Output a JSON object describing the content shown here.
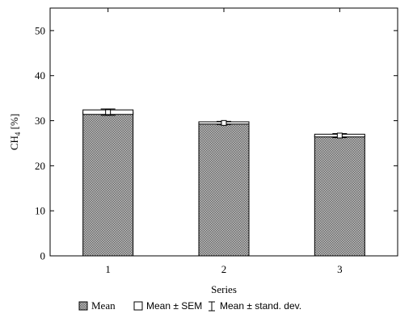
{
  "chart_data": {
    "type": "bar",
    "categories": [
      "1",
      "2",
      "3"
    ],
    "series": [
      {
        "values": [
          31.9,
          29.5,
          26.7
        ],
        "sem": [
          0.5,
          0.25,
          0.3
        ],
        "sd": [
          0.7,
          0.35,
          0.45
        ]
      }
    ],
    "xlabel": "Series",
    "ylabel_main": "CH",
    "ylabel_sub": "4",
    "ylabel_unit": " [%]",
    "ylim": [
      0,
      55
    ],
    "yticks": [
      0,
      10,
      20,
      30,
      40,
      50
    ],
    "ytick_labels": [
      "0",
      "10",
      "20",
      "30",
      "40",
      "50"
    ],
    "grid": false,
    "legend_position": "bottom",
    "legend": {
      "mean": "Mean",
      "sem": "Mean ± SEM",
      "sd": "Mean ± stand. dev."
    }
  }
}
